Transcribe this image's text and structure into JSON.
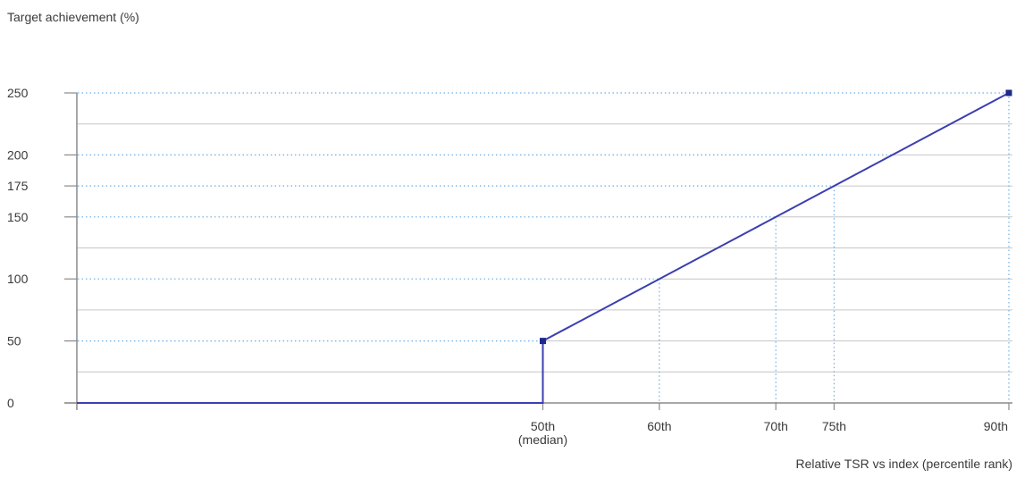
{
  "chart_data": {
    "type": "line",
    "ylabel": "Target achievement (%)",
    "xlabel": "Relative TSR vs index (percentile rank)",
    "ylim": [
      0,
      250
    ],
    "yticks": [
      0,
      50,
      100,
      150,
      175,
      200,
      250
    ],
    "y_tick_labels": [
      "0",
      "50",
      "100",
      "150",
      "175",
      "200",
      "250"
    ],
    "y_gridlines": [
      25,
      75,
      125,
      225
    ],
    "y_reference_lines": [
      50,
      100,
      150,
      175,
      200,
      250
    ],
    "xlim": [
      10,
      90
    ],
    "xticks": [
      {
        "value": 50,
        "label": "50th",
        "sublabel": "(median)"
      },
      {
        "value": 60,
        "label": "60th",
        "sublabel": ""
      },
      {
        "value": 70,
        "label": "70th",
        "sublabel": ""
      },
      {
        "value": 75,
        "label": "75th",
        "sublabel": ""
      },
      {
        "value": 90,
        "label": "90th",
        "sublabel": ""
      }
    ],
    "series": [
      {
        "points": [
          [
            10,
            0
          ],
          [
            50,
            0
          ],
          [
            50,
            50
          ],
          [
            60,
            100
          ],
          [
            70,
            150
          ],
          [
            75,
            175
          ],
          [
            90,
            250
          ]
        ],
        "markers": [
          [
            50,
            50
          ],
          [
            90,
            250
          ]
        ]
      }
    ],
    "colors": {
      "line": "#3b3fb0",
      "marker": "#1e2a8a",
      "grid": "#c6c6c6",
      "reference": "#6aaee6",
      "axis": "#8a8a8a",
      "text": "#3a3a3a"
    },
    "grid": true
  }
}
